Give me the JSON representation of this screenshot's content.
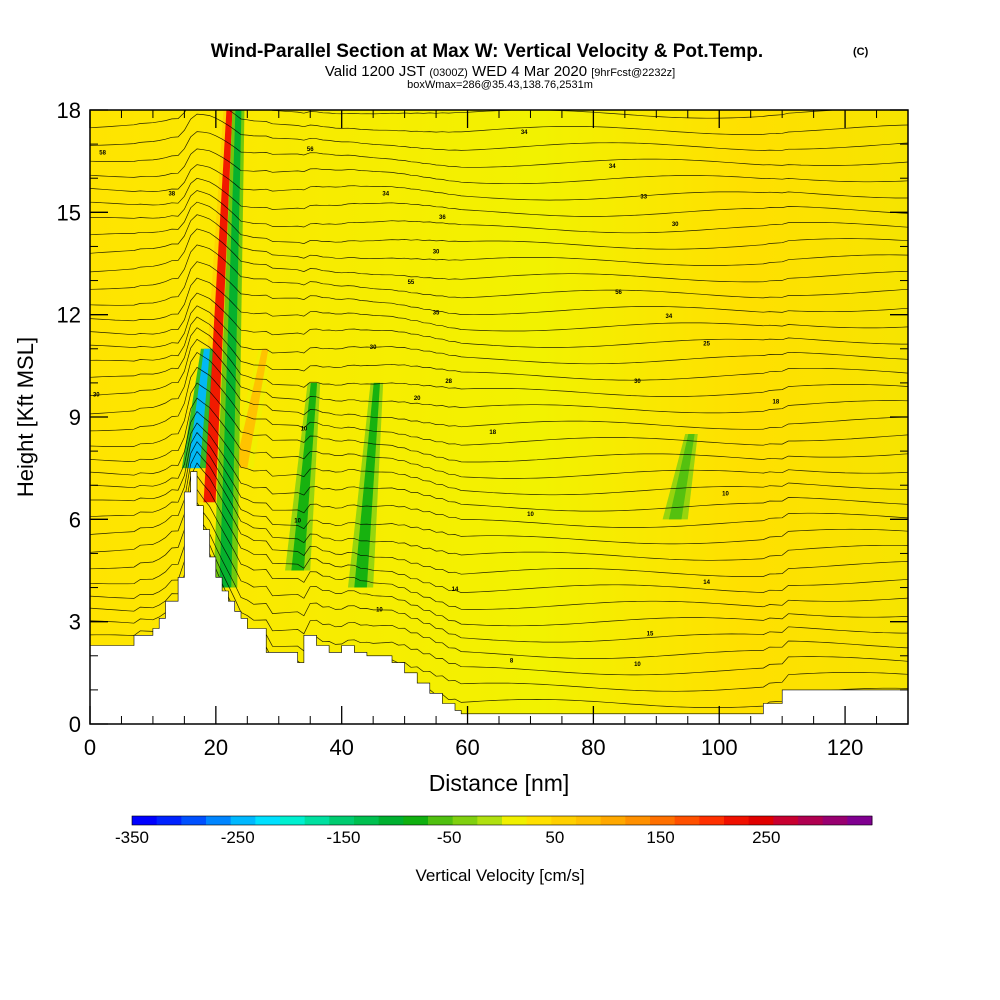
{
  "header": {
    "title_main": "Wind-Parallel Section at Max W: Vertical Velocity & Pot.Temp.",
    "title_mark": "(C)",
    "valid_prefix": "Valid 1200 JST",
    "valid_utc": "(0300Z)",
    "valid_date": "WED 4 Mar 2020",
    "forecast_tag": "[9hrFcst@2232z]",
    "box_info": "boxWmax=286@35.43,138.76,2531m"
  },
  "colorbar": {
    "label": "Vertical Velocity [cm/s]",
    "tick_labels": [
      "-350",
      "-250",
      "-150",
      "-50",
      "50",
      "150",
      "250"
    ],
    "tick_values": [
      -350,
      -250,
      -150,
      -50,
      50,
      150,
      250
    ],
    "range": [
      -350,
      350
    ],
    "step": 25,
    "colors": [
      "#0000ff",
      "#0022ff",
      "#0050ff",
      "#0085ff",
      "#00b8ff",
      "#00e0ff",
      "#00f0d0",
      "#00e0a0",
      "#00cc70",
      "#00c050",
      "#00b030",
      "#10b010",
      "#50c010",
      "#80d010",
      "#b0e010",
      "#f0f000",
      "#ffe000",
      "#ffd000",
      "#ffc000",
      "#ffa800",
      "#ff9000",
      "#ff7000",
      "#ff5000",
      "#ff3000",
      "#f01000",
      "#e00000",
      "#c80030",
      "#b00050",
      "#980070",
      "#800090"
    ]
  },
  "chart_data": {
    "type": "heatmap",
    "xlabel": "Distance [nm]",
    "ylabel": "Height [Kft MSL]",
    "xlim": [
      0,
      130
    ],
    "ylim": [
      0,
      18
    ],
    "x_ticks": [
      0,
      20,
      40,
      60,
      80,
      100,
      120
    ],
    "y_ticks": [
      0,
      3,
      6,
      9,
      12,
      15,
      18
    ],
    "x_tick_labels": [
      "0",
      "20",
      "40",
      "60",
      "80",
      "100",
      "120"
    ],
    "y_tick_labels": [
      "0",
      "3",
      "6",
      "9",
      "12",
      "15",
      "18"
    ],
    "field": "vertical velocity (cm/s) with potential temperature contours",
    "max_w_cm_s": 286,
    "max_w_location": "35.43,138.76",
    "max_w_height_m": 2531,
    "terrain": {
      "x": [
        0,
        1,
        7,
        7,
        10,
        10,
        11,
        11,
        12,
        12,
        14,
        14,
        15,
        15,
        16,
        16,
        17,
        17,
        18,
        18,
        19,
        19,
        20,
        20,
        21,
        21,
        22,
        22,
        23,
        23,
        24,
        24,
        25,
        25,
        28,
        28,
        33,
        33,
        34,
        34,
        36,
        36,
        38,
        38,
        40,
        40,
        42,
        42,
        44,
        44,
        48,
        48,
        50,
        50,
        52,
        52,
        54,
        54,
        56,
        56,
        58,
        58,
        59,
        59,
        61,
        61,
        107,
        107,
        110,
        110,
        130
      ],
      "y": [
        2.3,
        2.3,
        2.3,
        2.6,
        2.6,
        2.8,
        2.8,
        3.1,
        3.1,
        3.6,
        3.6,
        4.3,
        4.3,
        6.8,
        6.8,
        7.4,
        7.4,
        6.4,
        6.4,
        5.7,
        5.7,
        4.9,
        4.9,
        4.3,
        4.3,
        3.9,
        3.9,
        3.6,
        3.6,
        3.3,
        3.3,
        3.1,
        3.1,
        2.8,
        2.8,
        2.1,
        2.1,
        1.8,
        1.8,
        2.6,
        2.6,
        2.3,
        2.3,
        2.1,
        2.1,
        2.3,
        2.3,
        2.1,
        2.1,
        2.0,
        2.0,
        1.8,
        1.8,
        1.5,
        1.5,
        1.2,
        1.2,
        0.9,
        0.9,
        0.6,
        0.6,
        0.4,
        0.4,
        0.3,
        0.3,
        0.3,
        0.3,
        0.6,
        0.6,
        1.0,
        1.0
      ]
    },
    "features": [
      {
        "kind": "updraft",
        "x": [
          19,
          19.3
        ],
        "y": [
          6.5,
          18
        ],
        "w_cm_s": 260
      },
      {
        "kind": "updraft",
        "x": [
          24,
          25
        ],
        "y": [
          7.5,
          11
        ],
        "w_cm_s": 120
      },
      {
        "kind": "downdraft",
        "x": [
          16.5,
          17
        ],
        "y": [
          7.5,
          11
        ],
        "w_cm_s": -250
      },
      {
        "kind": "downdraft",
        "x": [
          21.5,
          22
        ],
        "y": [
          4.0,
          18
        ],
        "w_cm_s": -100
      },
      {
        "kind": "downdraft",
        "x": [
          33,
          34
        ],
        "y": [
          4.5,
          10
        ],
        "w_cm_s": -60
      },
      {
        "kind": "downdraft",
        "x": [
          43,
          44
        ],
        "y": [
          4.0,
          10
        ],
        "w_cm_s": -60
      },
      {
        "kind": "downdraft",
        "x": [
          93,
          94
        ],
        "y": [
          6.0,
          8.5
        ],
        "w_cm_s": -50
      }
    ],
    "contour_labels": [
      {
        "x": 2,
        "y": 16.7,
        "text": "58"
      },
      {
        "x": 13,
        "y": 15.5,
        "text": "38"
      },
      {
        "x": 35,
        "y": 16.8,
        "text": "56"
      },
      {
        "x": 47,
        "y": 15.5,
        "text": "34"
      },
      {
        "x": 69,
        "y": 17.3,
        "text": "34"
      },
      {
        "x": 83,
        "y": 16.3,
        "text": "34"
      },
      {
        "x": 88,
        "y": 15.4,
        "text": "33"
      },
      {
        "x": 93,
        "y": 14.6,
        "text": "30"
      },
      {
        "x": 56,
        "y": 14.8,
        "text": "36"
      },
      {
        "x": 55,
        "y": 13.8,
        "text": "30"
      },
      {
        "x": 51,
        "y": 12.9,
        "text": "55"
      },
      {
        "x": 84,
        "y": 12.6,
        "text": "56"
      },
      {
        "x": 55,
        "y": 12.0,
        "text": "35"
      },
      {
        "x": 92,
        "y": 11.9,
        "text": "34"
      },
      {
        "x": 45,
        "y": 11.0,
        "text": "30"
      },
      {
        "x": 98,
        "y": 11.1,
        "text": "25"
      },
      {
        "x": 57,
        "y": 10.0,
        "text": "28"
      },
      {
        "x": 87,
        "y": 10.0,
        "text": "30"
      },
      {
        "x": 1,
        "y": 9.6,
        "text": "30"
      },
      {
        "x": 52,
        "y": 9.5,
        "text": "20"
      },
      {
        "x": 109,
        "y": 9.4,
        "text": "18"
      },
      {
        "x": 34,
        "y": 8.6,
        "text": "10"
      },
      {
        "x": 64,
        "y": 8.5,
        "text": "18"
      },
      {
        "x": 70,
        "y": 6.1,
        "text": "10"
      },
      {
        "x": 33,
        "y": 5.9,
        "text": "10"
      },
      {
        "x": 101,
        "y": 6.7,
        "text": "10"
      },
      {
        "x": 58,
        "y": 3.9,
        "text": "14"
      },
      {
        "x": 98,
        "y": 4.1,
        "text": "14"
      },
      {
        "x": 46,
        "y": 3.3,
        "text": "10"
      },
      {
        "x": 89,
        "y": 2.6,
        "text": "15"
      },
      {
        "x": 67,
        "y": 1.8,
        "text": "8"
      },
      {
        "x": 87,
        "y": 1.7,
        "text": "10"
      }
    ]
  }
}
